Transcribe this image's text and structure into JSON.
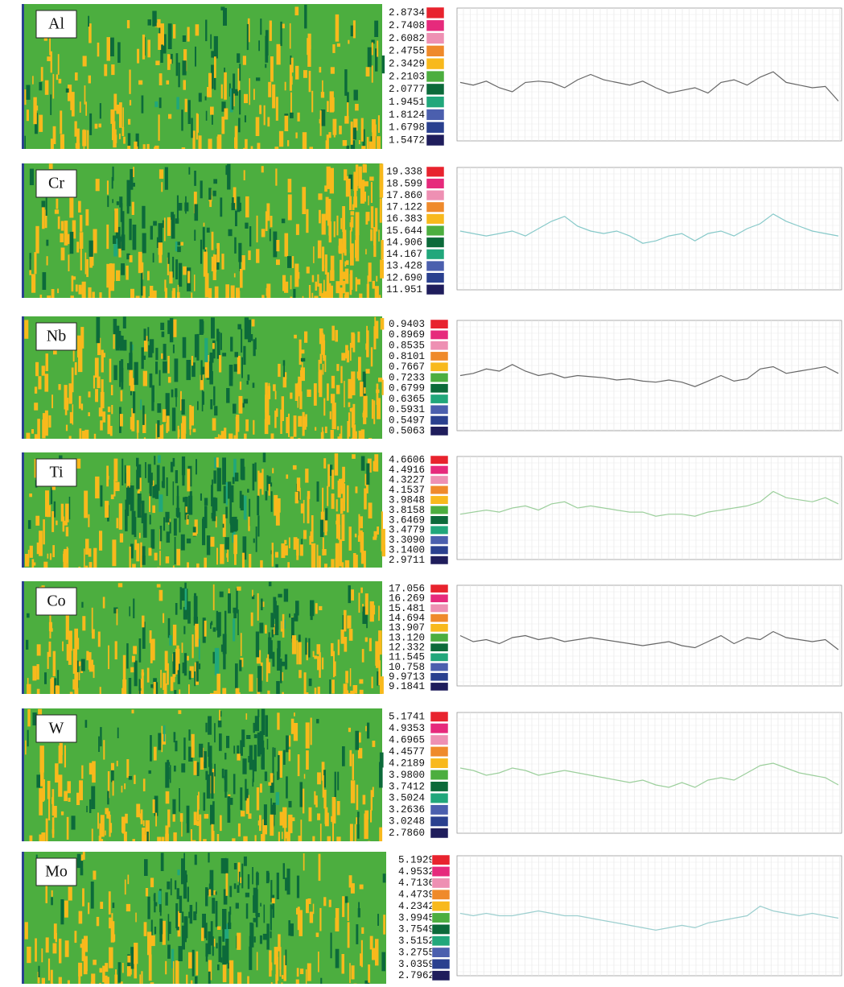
{
  "legend_colors": [
    "#e8232e",
    "#e62a7c",
    "#ee90b3",
    "#ef8a2b",
    "#f8b91c",
    "#4cae3f",
    "#0c6a3a",
    "#21a77b",
    "#4b5fae",
    "#2a408f",
    "#1f1d5c"
  ],
  "panels": [
    {
      "element": "Al",
      "legend": [
        "2.8734",
        "2.7408",
        "2.6082",
        "2.4755",
        "2.3429",
        "2.2103",
        "2.0777",
        "1.9451",
        "1.8124",
        "1.6798",
        "1.5472"
      ],
      "line_color": "#666666",
      "profile": {
        "ylim": [
          0,
          100
        ],
        "values": [
          44,
          42,
          45,
          40,
          37,
          44,
          45,
          44,
          40,
          46,
          50,
          46,
          44,
          42,
          45,
          40,
          36,
          38,
          40,
          36,
          44,
          46,
          42,
          48,
          52,
          44,
          42,
          40,
          41,
          30
        ]
      }
    },
    {
      "element": "Cr",
      "legend": [
        "19.338",
        "18.599",
        "17.860",
        "17.122",
        "16.383",
        "15.644",
        "14.906",
        "14.167",
        "13.428",
        "12.690",
        "11.951"
      ],
      "line_color": "#86c9c9",
      "profile": {
        "ylim": [
          0,
          100
        ],
        "values": [
          48,
          46,
          44,
          46,
          48,
          44,
          50,
          56,
          60,
          52,
          48,
          46,
          48,
          44,
          38,
          40,
          44,
          46,
          40,
          46,
          48,
          44,
          50,
          54,
          62,
          56,
          52,
          48,
          46,
          44
        ]
      }
    },
    {
      "element": "Nb",
      "legend": [
        "0.9403",
        "0.8969",
        "0.8535",
        "0.8101",
        "0.7667",
        "0.7233",
        "0.6799",
        "0.6365",
        "0.5931",
        "0.5497",
        "0.5063"
      ],
      "line_color": "#666666",
      "profile": {
        "ylim": [
          0,
          100
        ],
        "values": [
          50,
          52,
          56,
          54,
          60,
          54,
          50,
          52,
          48,
          50,
          49,
          48,
          46,
          47,
          45,
          44,
          46,
          44,
          40,
          45,
          50,
          45,
          47,
          56,
          58,
          52,
          54,
          56,
          58,
          52
        ]
      }
    },
    {
      "element": "Ti",
      "legend": [
        "4.6606",
        "4.4916",
        "4.3227",
        "4.1537",
        "3.9848",
        "3.8158",
        "3.6469",
        "3.4779",
        "3.3090",
        "3.1400",
        "2.9711"
      ],
      "line_color": "#9ccf9c",
      "profile": {
        "ylim": [
          0,
          100
        ],
        "values": [
          44,
          46,
          48,
          46,
          50,
          52,
          48,
          54,
          56,
          50,
          52,
          50,
          48,
          46,
          46,
          42,
          44,
          44,
          42,
          46,
          48,
          50,
          52,
          56,
          66,
          60,
          58,
          56,
          60,
          54
        ]
      }
    },
    {
      "element": "Co",
      "legend": [
        "17.056",
        "16.269",
        "15.481",
        "14.694",
        "13.907",
        "13.120",
        "12.332",
        "11.545",
        "10.758",
        "9.9713",
        "9.1841"
      ],
      "line_color": "#666666",
      "profile": {
        "ylim": [
          0,
          100
        ],
        "values": [
          50,
          44,
          46,
          42,
          48,
          50,
          46,
          48,
          44,
          46,
          48,
          46,
          44,
          42,
          40,
          42,
          44,
          40,
          38,
          44,
          50,
          42,
          48,
          46,
          54,
          48,
          46,
          44,
          46,
          36
        ]
      }
    },
    {
      "element": "W",
      "legend": [
        "5.1741",
        "4.9353",
        "4.6965",
        "4.4577",
        "4.2189",
        "3.9800",
        "3.7412",
        "3.5024",
        "3.2636",
        "3.0248",
        "2.7860"
      ],
      "line_color": "#9ccf9c",
      "profile": {
        "ylim": [
          0,
          100
        ],
        "values": [
          54,
          52,
          48,
          50,
          54,
          52,
          48,
          50,
          52,
          50,
          48,
          46,
          44,
          42,
          44,
          40,
          38,
          42,
          38,
          44,
          46,
          44,
          50,
          56,
          58,
          54,
          50,
          48,
          46,
          40
        ]
      }
    },
    {
      "element": "Mo",
      "legend": [
        "5.1929",
        "4.9532",
        "4.7136",
        "4.4739",
        "4.2342",
        "3.9945",
        "3.7549",
        "3.5152",
        "3.2755",
        "3.0359",
        "2.7962"
      ],
      "line_color": "#9ccfcf",
      "profile": {
        "ylim": [
          0,
          100
        ],
        "values": [
          52,
          50,
          52,
          50,
          50,
          52,
          54,
          52,
          50,
          50,
          48,
          46,
          44,
          42,
          40,
          38,
          40,
          42,
          40,
          44,
          46,
          48,
          50,
          58,
          54,
          52,
          50,
          52,
          50,
          48
        ]
      }
    }
  ]
}
